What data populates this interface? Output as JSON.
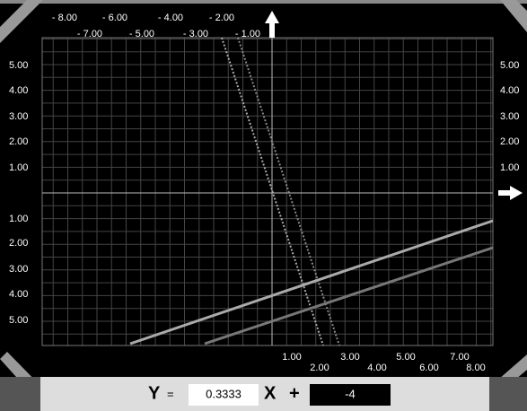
{
  "top_labels": [
    "- 8.00",
    "- 6.00",
    "- 4.00",
    "- 2.00",
    "- 7.00",
    "- 5.00",
    "- 3.00",
    "- 1.00"
  ],
  "left_labels": [
    "5.00",
    "4.00",
    "3.00",
    "2.00",
    "1.00",
    "1.00",
    "2.00",
    "3.00",
    "4.00",
    "5.00"
  ],
  "right_labels": [
    "5.00",
    "4.00",
    "3.00",
    "2.00",
    "1.00"
  ],
  "bottom_labels": [
    "1.00",
    "3.00",
    "5.00",
    "7.00",
    "2.00",
    "4.00",
    "6.00",
    "8.00"
  ],
  "equation": {
    "y_label": "Y",
    "equals": "=",
    "slope": "0.3333",
    "x_label": "X",
    "plus": "+",
    "intercept": "-4"
  }
}
